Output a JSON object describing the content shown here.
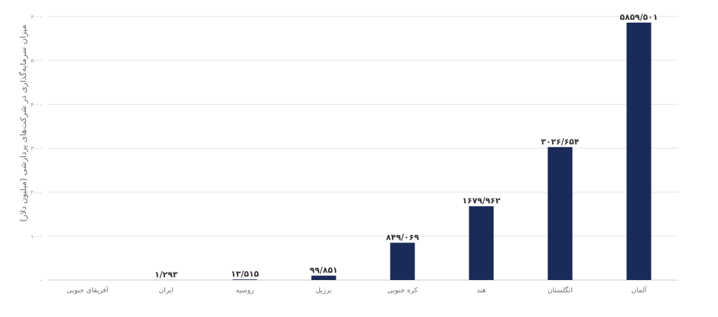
{
  "chart_data": {
    "type": "bar",
    "ylabel": "میزان سرمایه‌گذاری در شرکت‌های پردازشی (میلیون دلار)",
    "xlabel": "",
    "ylim": [
      0,
      6000
    ],
    "grid": true,
    "bar_color": "#1b2b57",
    "y_ticks": [
      {
        "value": 0,
        "label": "۰"
      },
      {
        "value": 1000,
        "label": "۱۰۰۰"
      },
      {
        "value": 2000,
        "label": "۲۰۰۰"
      },
      {
        "value": 3000,
        "label": "۳۰۰۰"
      },
      {
        "value": 4000,
        "label": "۴۰۰۰"
      },
      {
        "value": 5000,
        "label": "۵۰۰۰"
      },
      {
        "value": 6000,
        "label": "۶۰۰۰"
      }
    ],
    "categories": [
      "آفریقای جنوبی",
      "ایران",
      "روسیه",
      "برزیل",
      "کره جنوبی",
      "هند",
      "انگلستان",
      "آلمان"
    ],
    "values": [
      0,
      1.293,
      13.515,
      99.851,
      849.069,
      1679.962,
      3026.654,
      5859.501
    ],
    "data_labels": [
      "",
      "۱/۲۹۳",
      "۱۳/۵۱۵",
      "۹۹/۸۵۱",
      "۸۴۹/۰۶۹",
      "۱۶۷۹/۹۶۲",
      "۳۰۲۶/۶۵۴",
      "۵۸۵۹/۵۰۱"
    ]
  }
}
